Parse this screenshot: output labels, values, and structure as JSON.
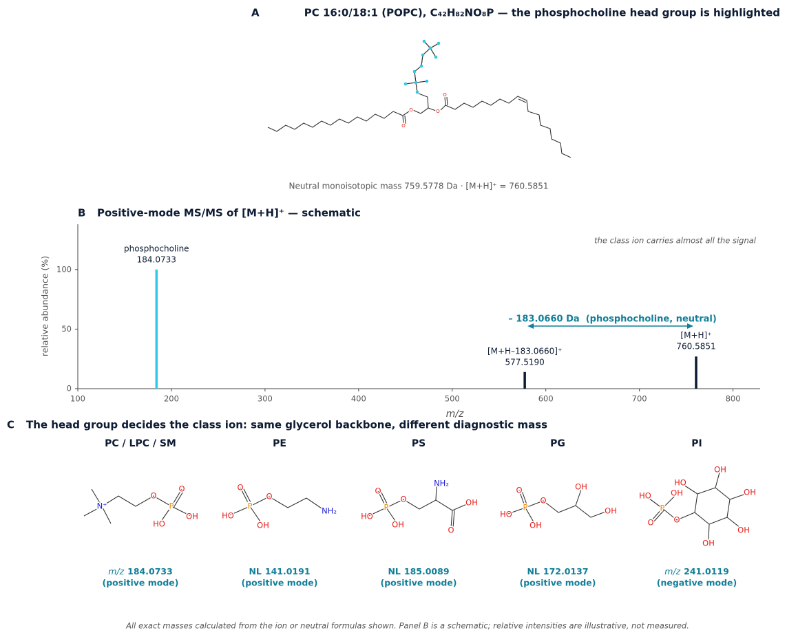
{
  "panel_a": {
    "letter": "A",
    "title": "PC 16:0/18:1 (POPC), C₄₂H₈₂NO₈P — the phosphocholine head group is highlighted",
    "atoms": [
      "O",
      "O",
      "O",
      "O"
    ],
    "note": "Neutral monoisotopic mass 759.5778 Da · [M+H]⁺ = 760.5851"
  },
  "chart_data": {
    "type": "bar",
    "letter": "B",
    "title": "Positive-mode MS/MS of [M+H]⁺ — schematic",
    "x_label": "m/z",
    "y_label": "relative abundance (%)",
    "x": [
      184.0733,
      577.519,
      760.5851
    ],
    "x_labels": [
      "184.0733",
      "577.5190",
      "760.5851"
    ],
    "names": [
      "phosphocholine",
      "[M+H–183.0660]⁺",
      "[M+H]⁺"
    ],
    "values": [
      100,
      14,
      27
    ],
    "colors": [
      "#2ecbe6",
      "#0d1b33",
      "#0d1b33"
    ],
    "xlim": [
      100,
      829
    ],
    "ylim": [
      0,
      138
    ],
    "xticks": [
      100,
      200,
      300,
      400,
      500,
      600,
      700,
      800
    ],
    "yticks": [
      0,
      50,
      100
    ],
    "annotation": "– 183.0660 Da  (phosphocholine, neutral)",
    "annotation_color": "#127e99",
    "note": "the class ion carries almost all the signal",
    "grid": false
  },
  "panel_c": {
    "letter": "C",
    "title": "The head group decides the class ion: same glycerol backbone, different diagnostic mass",
    "items": [
      {
        "name": "PC / LPC / SM",
        "atoms": [
          "N⁺",
          "O",
          "P",
          "O",
          "OH",
          "HO"
        ],
        "prefix": "m/z",
        "prefix_italic": true,
        "mass": "184.0733",
        "mode": "(positive mode)"
      },
      {
        "name": "PE",
        "atoms": [
          "O",
          "P",
          "O",
          "HO",
          "OH",
          "NH₂"
        ],
        "prefix": "NL",
        "prefix_italic": false,
        "mass": "141.0191",
        "mode": "(positive mode)"
      },
      {
        "name": "PS",
        "atoms": [
          "NH₂",
          "O",
          "P",
          "O",
          "HO",
          "OH",
          "OH",
          "O"
        ],
        "prefix": "NL",
        "prefix_italic": false,
        "mass": "185.0089",
        "mode": "(positive mode)"
      },
      {
        "name": "PG",
        "atoms": [
          "O",
          "P",
          "O",
          "HO",
          "OH",
          "OH",
          "OH"
        ],
        "prefix": "NL",
        "prefix_italic": false,
        "mass": "172.0137",
        "mode": "(positive mode)"
      },
      {
        "name": "PI",
        "atoms": [
          "OH",
          "HO",
          "OH",
          "OH",
          "OH",
          "O",
          "P",
          "HO",
          "OH",
          "O"
        ],
        "prefix": "m/z",
        "prefix_italic": true,
        "mass": "241.0119",
        "mode": "(negative mode)"
      }
    ]
  },
  "footer": "All exact masses calculated from the ion or neutral formulas shown. Panel B is a schematic; relative intensities are illustrative, not measured."
}
